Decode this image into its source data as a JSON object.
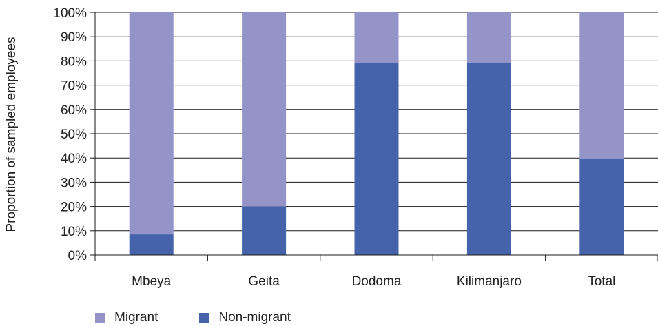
{
  "chart_data": {
    "type": "bar",
    "stacked": true,
    "percent_stacked": true,
    "categories": [
      "Mbeya",
      "Geita",
      "Dodoma",
      "Kilimanjaro",
      "Total"
    ],
    "series": [
      {
        "name": "Non-migrant",
        "color": "#4563aa",
        "values": [
          8.5,
          20,
          79,
          79,
          39.5
        ]
      },
      {
        "name": "Migrant",
        "color": "#9494c8",
        "values": [
          91.5,
          80,
          21,
          21,
          60.5
        ]
      }
    ],
    "ylabel": "Proportion of sampled employees",
    "ylim": [
      0,
      100
    ],
    "yticks": [
      "0%",
      "10%",
      "20%",
      "30%",
      "40%",
      "50%",
      "60%",
      "70%",
      "80%",
      "90%",
      "100%"
    ],
    "grid": "horizontal",
    "legend_position": "bottom-left",
    "legend": [
      {
        "label": "Migrant",
        "color": "#9494c8"
      },
      {
        "label": "Non-migrant",
        "color": "#4563aa"
      }
    ]
  }
}
